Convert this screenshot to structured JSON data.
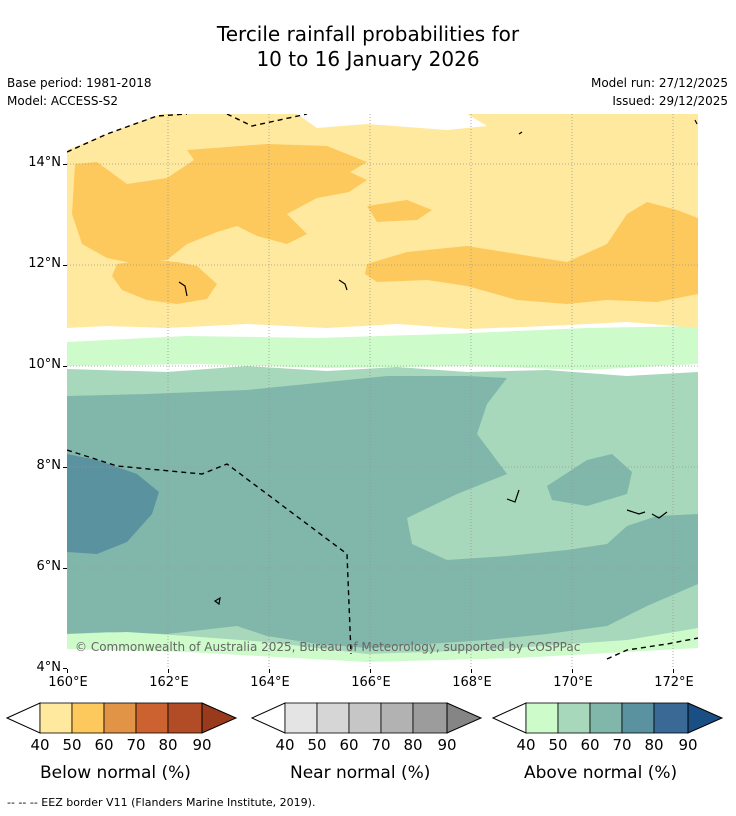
{
  "title": {
    "line1": "Tercile rainfall probabilities for",
    "line2": "10 to 16 January 2026"
  },
  "meta": {
    "base_period": "Base period: 1981-2018",
    "model": "Model: ACCESS-S2",
    "model_run": "Model run: 27/12/2025",
    "issued": "Issued: 29/12/2025"
  },
  "map": {
    "copyright": "© Commonwealth of Australia 2025, Bureau of Meteorology, supported by COSPPac",
    "lat_labels": [
      "14°N",
      "12°N",
      "10°N",
      "8°N",
      "6°N",
      "4°N"
    ],
    "lon_labels": [
      "160°E",
      "162°E",
      "164°E",
      "166°E",
      "168°E",
      "170°E",
      "172°E"
    ],
    "lat_values": [
      14,
      12,
      10,
      8,
      6,
      4
    ],
    "lon_values": [
      160,
      162,
      164,
      166,
      168,
      170,
      172
    ]
  },
  "legends": [
    {
      "caption": "Below normal (%)",
      "ticks": [
        "40",
        "50",
        "60",
        "70",
        "80",
        "90"
      ],
      "colors": [
        "#ffe99e",
        "#fec95c",
        "#e19346",
        "#cb622f",
        "#b14c26",
        "#9a3a1d"
      ]
    },
    {
      "caption": "Near normal (%)",
      "ticks": [
        "40",
        "50",
        "60",
        "70",
        "80",
        "90"
      ],
      "colors": [
        "#e4e4e4",
        "#d6d6d6",
        "#c6c6c6",
        "#b2b2b2",
        "#9c9c9c",
        "#858585"
      ]
    },
    {
      "caption": "Above normal (%)",
      "ticks": [
        "40",
        "50",
        "60",
        "70",
        "80",
        "90"
      ],
      "colors": [
        "#cdfbca",
        "#a7d8bb",
        "#81b7aa",
        "#5b92a0",
        "#3a6996",
        "#1a4f85"
      ]
    }
  ],
  "footnote": "-- -- -- EEZ border V11 (Flanders Marine Institute, 2019)."
}
